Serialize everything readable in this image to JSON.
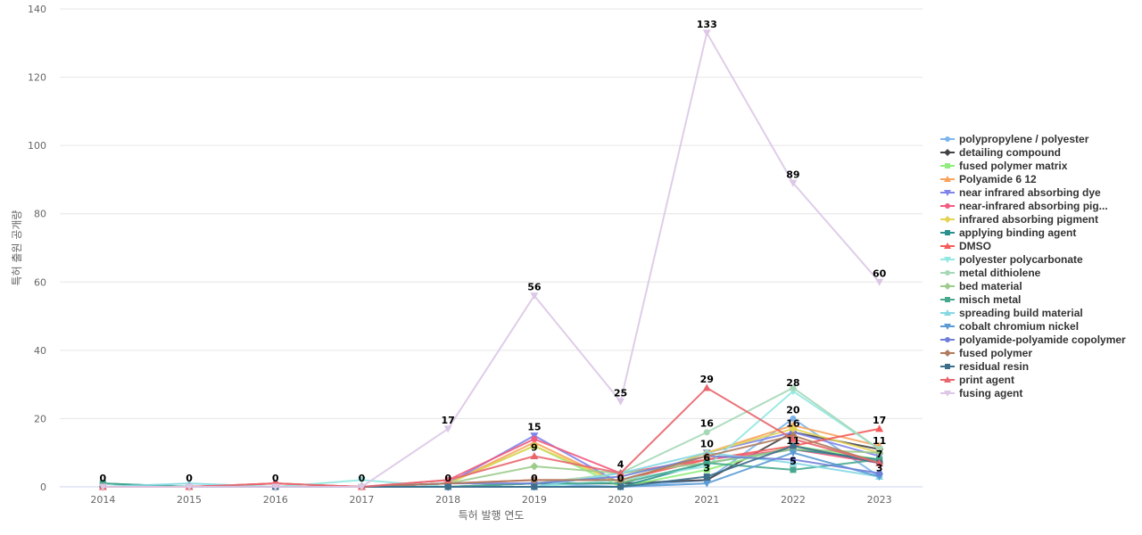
{
  "chart_data": {
    "type": "line",
    "title": "",
    "xlabel": "특허 발행 연도",
    "ylabel": "특허 출원 공개량",
    "x": [
      "2014",
      "2015",
      "2016",
      "2017",
      "2018",
      "2019",
      "2020",
      "2021",
      "2022",
      "2023"
    ],
    "ylim": [
      0,
      140
    ],
    "yticks": [
      0,
      20,
      40,
      60,
      80,
      100,
      120,
      140
    ],
    "grid": true,
    "legend_position": "right",
    "series": [
      {
        "name": "polypropylene / polyester",
        "color": "#7cb5ec",
        "marker": "circle",
        "values": [
          0,
          0,
          0,
          0,
          0,
          1,
          0,
          2,
          20,
          3
        ]
      },
      {
        "name": "detailing compound",
        "color": "#434348",
        "marker": "diamond",
        "values": [
          0,
          0,
          0,
          0,
          0,
          1,
          1,
          2,
          16,
          11
        ]
      },
      {
        "name": "fused polymer matrix",
        "color": "#90ed7d",
        "marker": "square",
        "values": [
          0,
          0,
          0,
          0,
          1,
          12,
          0,
          5,
          12,
          8
        ]
      },
      {
        "name": "Polyamide 6 12",
        "color": "#f7a35c",
        "marker": "triangle",
        "values": [
          0,
          0,
          0,
          0,
          1,
          13,
          1,
          10,
          18,
          12
        ]
      },
      {
        "name": "near infrared absorbing dye",
        "color": "#8085e9",
        "marker": "triangle-down",
        "values": [
          0,
          0,
          0,
          0,
          1,
          15,
          1,
          10,
          16,
          9
        ]
      },
      {
        "name": "near-infrared absorbing pig...",
        "color": "#f15c80",
        "marker": "circle",
        "values": [
          0,
          0,
          1,
          0,
          2,
          14,
          4,
          8,
          11,
          7
        ]
      },
      {
        "name": "infrared absorbing pigment",
        "color": "#e4d354",
        "marker": "diamond",
        "values": [
          0,
          0,
          0,
          0,
          1,
          12,
          1,
          10,
          17,
          10
        ]
      },
      {
        "name": "applying binding agent",
        "color": "#2b908f",
        "marker": "square",
        "values": [
          1,
          0,
          0,
          0,
          0,
          0,
          0,
          7,
          11,
          8
        ]
      },
      {
        "name": "DMSO",
        "color": "#f45b5b",
        "marker": "triangle",
        "values": [
          0,
          0,
          1,
          0,
          1,
          2,
          2,
          8,
          12,
          17
        ]
      },
      {
        "name": "polyester polycarbonate",
        "color": "#91e8e1",
        "marker": "triangle-down",
        "values": [
          0,
          0,
          0,
          2,
          0,
          0,
          2,
          6,
          28,
          11
        ]
      },
      {
        "name": "metal dithiolene",
        "color": "#a6d8b8",
        "marker": "circle",
        "values": [
          0,
          0,
          0,
          0,
          0,
          1,
          4,
          16,
          29,
          11
        ]
      },
      {
        "name": "bed material",
        "color": "#9ccc8c",
        "marker": "diamond",
        "values": [
          0,
          0,
          0,
          0,
          1,
          6,
          4,
          7,
          11,
          10
        ]
      },
      {
        "name": "misch metal",
        "color": "#47a88f",
        "marker": "square",
        "values": [
          1,
          0,
          0,
          0,
          0,
          1,
          1,
          7,
          5,
          8
        ]
      },
      {
        "name": "spreading build material",
        "color": "#84d8e3",
        "marker": "triangle",
        "values": [
          0,
          1,
          0,
          0,
          0,
          0,
          4,
          10,
          7,
          3
        ]
      },
      {
        "name": "cobalt chromium nickel",
        "color": "#5b9bd5",
        "marker": "triangle-down",
        "values": [
          0,
          0,
          0,
          0,
          0,
          0,
          0,
          1,
          10,
          3
        ]
      },
      {
        "name": "polyamide-polyamide copolymer",
        "color": "#6f7fd8",
        "marker": "circle",
        "values": [
          0,
          0,
          0,
          0,
          1,
          1,
          3,
          9,
          8,
          4
        ]
      },
      {
        "name": "fused polymer",
        "color": "#b07c5d",
        "marker": "diamond",
        "values": [
          0,
          0,
          0,
          0,
          1,
          2,
          2,
          9,
          15,
          7
        ]
      },
      {
        "name": "residual resin",
        "color": "#3d6e8a",
        "marker": "square",
        "values": [
          0,
          0,
          0,
          0,
          0,
          0,
          0,
          3,
          12,
          7
        ]
      },
      {
        "name": "print agent",
        "color": "#e8666e",
        "marker": "triangle",
        "values": [
          0,
          0,
          1,
          0,
          2,
          9,
          4,
          29,
          14,
          7
        ]
      },
      {
        "name": "fusing agent",
        "color": "#dcc8e6",
        "marker": "triangle-down",
        "values": [
          0,
          0,
          0,
          0,
          17,
          56,
          25,
          133,
          89,
          60
        ]
      }
    ],
    "data_labels": [
      {
        "x": "2014",
        "value": "0"
      },
      {
        "x": "2015",
        "value": "0"
      },
      {
        "x": "2016",
        "value": "0"
      },
      {
        "x": "2017",
        "value": "0"
      },
      {
        "x": "2018",
        "value": "0"
      },
      {
        "x": "2018",
        "value": "17"
      },
      {
        "x": "2019",
        "value": "56"
      },
      {
        "x": "2019",
        "value": "15"
      },
      {
        "x": "2019",
        "value": "9"
      },
      {
        "x": "2019",
        "value": "0"
      },
      {
        "x": "2020",
        "value": "25"
      },
      {
        "x": "2020",
        "value": "4"
      },
      {
        "x": "2020",
        "value": "0"
      },
      {
        "x": "2021",
        "value": "133"
      },
      {
        "x": "2021",
        "value": "29"
      },
      {
        "x": "2021",
        "value": "16"
      },
      {
        "x": "2021",
        "value": "10"
      },
      {
        "x": "2021",
        "value": "6"
      },
      {
        "x": "2021",
        "value": "3"
      },
      {
        "x": "2022",
        "value": "89"
      },
      {
        "x": "2022",
        "value": "28"
      },
      {
        "x": "2022",
        "value": "20"
      },
      {
        "x": "2022",
        "value": "16"
      },
      {
        "x": "2022",
        "value": "11"
      },
      {
        "x": "2022",
        "value": "5"
      },
      {
        "x": "2023",
        "value": "60"
      },
      {
        "x": "2023",
        "value": "17"
      },
      {
        "x": "2023",
        "value": "11"
      },
      {
        "x": "2023",
        "value": "7"
      },
      {
        "x": "2023",
        "value": "3"
      }
    ]
  }
}
